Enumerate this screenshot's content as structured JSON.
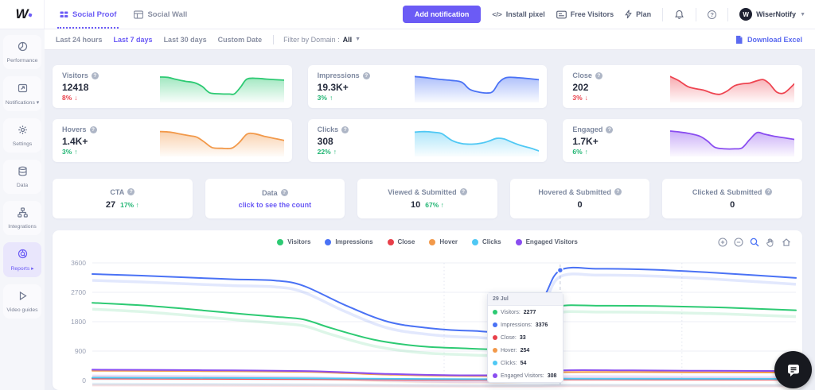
{
  "accent": "#6b5bf5",
  "header": {
    "logo_text": "W",
    "tabs": [
      {
        "label": "Social Proof"
      },
      {
        "label": "Social Wall"
      }
    ],
    "add_notification_label": "Add notification",
    "install_pixel_glyph": "</>",
    "install_pixel_label": "Install pixel",
    "free_visitors_label": "Free Visitors",
    "plan_label": "Plan",
    "account_name": "WiserNotify",
    "account_avatar_letter": "W"
  },
  "sidebar": {
    "items": [
      {
        "label": "Performance"
      },
      {
        "label": "Notifications",
        "caret": "▾"
      },
      {
        "label": "Settings"
      },
      {
        "label": "Data"
      },
      {
        "label": "Integrations"
      },
      {
        "label": "Reports",
        "caret": "▸",
        "active": true
      },
      {
        "label": "Video guides"
      }
    ]
  },
  "filter_bar": {
    "ranges": [
      "Last 24 hours",
      "Last 7 days",
      "Last 30 days",
      "Custom Date"
    ],
    "active_range": "Last 7 days",
    "domain_filter_label": "Filter by Domain :",
    "domain_filter_value": "All",
    "download_label": "Download Excel"
  },
  "stat_cards": [
    {
      "title": "Visitors",
      "value": "12418",
      "change": "8%",
      "arrow": "↓",
      "change_color": "#e8404a",
      "color": "#2dca73",
      "spark": [
        [
          0,
          0.88
        ],
        [
          0.06,
          0.87
        ],
        [
          0.12,
          0.8
        ],
        [
          0.2,
          0.72
        ],
        [
          0.28,
          0.66
        ],
        [
          0.34,
          0.52
        ],
        [
          0.4,
          0.28
        ],
        [
          0.48,
          0.24
        ],
        [
          0.56,
          0.23
        ],
        [
          0.6,
          0.24
        ],
        [
          0.65,
          0.5
        ],
        [
          0.7,
          0.8
        ],
        [
          0.78,
          0.83
        ],
        [
          0.86,
          0.8
        ],
        [
          1,
          0.76
        ]
      ]
    },
    {
      "title": "Impressions",
      "value": "19.3K+",
      "change": "3%",
      "arrow": "↑",
      "change_color": "#21b573",
      "color": "#4a72f5",
      "spark": [
        [
          0,
          0.9
        ],
        [
          0.1,
          0.85
        ],
        [
          0.2,
          0.79
        ],
        [
          0.3,
          0.75
        ],
        [
          0.38,
          0.68
        ],
        [
          0.44,
          0.42
        ],
        [
          0.5,
          0.32
        ],
        [
          0.58,
          0.27
        ],
        [
          0.63,
          0.33
        ],
        [
          0.68,
          0.68
        ],
        [
          0.74,
          0.86
        ],
        [
          0.84,
          0.85
        ],
        [
          1,
          0.78
        ]
      ]
    },
    {
      "title": "Close",
      "value": "202",
      "change": "3%",
      "arrow": "↓",
      "change_color": "#e8404a",
      "color": "#ee4450",
      "spark": [
        [
          0,
          0.9
        ],
        [
          0.07,
          0.74
        ],
        [
          0.14,
          0.52
        ],
        [
          0.2,
          0.44
        ],
        [
          0.27,
          0.38
        ],
        [
          0.34,
          0.26
        ],
        [
          0.4,
          0.22
        ],
        [
          0.46,
          0.35
        ],
        [
          0.52,
          0.55
        ],
        [
          0.58,
          0.62
        ],
        [
          0.64,
          0.65
        ],
        [
          0.7,
          0.74
        ],
        [
          0.75,
          0.78
        ],
        [
          0.8,
          0.62
        ],
        [
          0.86,
          0.3
        ],
        [
          0.92,
          0.28
        ],
        [
          1,
          0.62
        ]
      ]
    },
    {
      "title": "Hovers",
      "value": "1.4K+",
      "change": "3%",
      "arrow": "↑",
      "change_color": "#21b573",
      "color": "#f2994a",
      "spark": [
        [
          0,
          0.86
        ],
        [
          0.08,
          0.84
        ],
        [
          0.16,
          0.77
        ],
        [
          0.24,
          0.7
        ],
        [
          0.3,
          0.64
        ],
        [
          0.36,
          0.45
        ],
        [
          0.42,
          0.25
        ],
        [
          0.5,
          0.22
        ],
        [
          0.58,
          0.23
        ],
        [
          0.64,
          0.45
        ],
        [
          0.7,
          0.76
        ],
        [
          0.76,
          0.78
        ],
        [
          0.84,
          0.68
        ],
        [
          0.92,
          0.6
        ],
        [
          1,
          0.52
        ]
      ]
    },
    {
      "title": "Clicks",
      "value": "308",
      "change": "22%",
      "arrow": "↑",
      "change_color": "#21b573",
      "color": "#4fc8f4",
      "spark": [
        [
          0,
          0.84
        ],
        [
          0.08,
          0.86
        ],
        [
          0.16,
          0.83
        ],
        [
          0.22,
          0.78
        ],
        [
          0.3,
          0.52
        ],
        [
          0.38,
          0.4
        ],
        [
          0.46,
          0.38
        ],
        [
          0.54,
          0.42
        ],
        [
          0.6,
          0.5
        ],
        [
          0.66,
          0.6
        ],
        [
          0.72,
          0.58
        ],
        [
          0.78,
          0.46
        ],
        [
          0.86,
          0.32
        ],
        [
          0.94,
          0.22
        ],
        [
          1,
          0.12
        ]
      ]
    },
    {
      "title": "Engaged",
      "value": "1.7K+",
      "change": "6%",
      "arrow": "↑",
      "change_color": "#21b573",
      "color": "#8a4df0",
      "spark": [
        [
          0,
          0.88
        ],
        [
          0.08,
          0.84
        ],
        [
          0.16,
          0.78
        ],
        [
          0.24,
          0.68
        ],
        [
          0.3,
          0.5
        ],
        [
          0.36,
          0.26
        ],
        [
          0.44,
          0.2
        ],
        [
          0.52,
          0.2
        ],
        [
          0.58,
          0.24
        ],
        [
          0.64,
          0.55
        ],
        [
          0.7,
          0.82
        ],
        [
          0.76,
          0.76
        ],
        [
          0.84,
          0.68
        ],
        [
          0.92,
          0.62
        ],
        [
          1,
          0.56
        ]
      ]
    }
  ],
  "summary_cards": [
    {
      "title": "CTA",
      "value": "27",
      "change": "17%",
      "arrow": "↑",
      "change_color": "#21b573"
    },
    {
      "title": "Data",
      "link_text": "click to see the count"
    },
    {
      "title": "Viewed & Submitted",
      "value": "10",
      "change": "67%",
      "arrow": "↑",
      "change_color": "#21b573"
    },
    {
      "title": "Hovered & Submitted",
      "value": "0"
    },
    {
      "title": "Clicked & Submitted",
      "value": "0"
    }
  ],
  "chart_data": {
    "type": "line",
    "title": "",
    "legend_position": "top-center",
    "grid": true,
    "y_max": 3600,
    "y_ticks": [
      0,
      900,
      1800,
      2700,
      3600
    ],
    "x_unit": "fraction of last-7-days window (no x labels visible)",
    "series": [
      {
        "name": "Visitors",
        "color": "#2dca73",
        "points": [
          [
            0,
            2380
          ],
          [
            0.07,
            2300
          ],
          [
            0.14,
            2180
          ],
          [
            0.2,
            2060
          ],
          [
            0.26,
            1950
          ],
          [
            0.3,
            1870
          ],
          [
            0.34,
            1600
          ],
          [
            0.4,
            1250
          ],
          [
            0.46,
            1060
          ],
          [
            0.52,
            990
          ],
          [
            0.58,
            980
          ],
          [
            0.62,
            1300
          ],
          [
            0.645,
            1950
          ],
          [
            0.665,
            2277
          ],
          [
            0.72,
            2290
          ],
          [
            0.8,
            2280
          ],
          [
            0.9,
            2230
          ],
          [
            1,
            2150
          ]
        ]
      },
      {
        "name": "Impressions",
        "color": "#4a72f5",
        "points": [
          [
            0,
            3260
          ],
          [
            0.07,
            3210
          ],
          [
            0.14,
            3150
          ],
          [
            0.2,
            3100
          ],
          [
            0.26,
            3060
          ],
          [
            0.3,
            2900
          ],
          [
            0.36,
            2300
          ],
          [
            0.42,
            1800
          ],
          [
            0.48,
            1600
          ],
          [
            0.54,
            1520
          ],
          [
            0.6,
            1560
          ],
          [
            0.64,
            2500
          ],
          [
            0.665,
            3376
          ],
          [
            0.72,
            3420
          ],
          [
            0.8,
            3390
          ],
          [
            0.9,
            3280
          ],
          [
            1,
            3140
          ]
        ]
      },
      {
        "name": "Close",
        "color": "#e8404a",
        "points": [
          [
            0,
            58
          ],
          [
            0.15,
            50
          ],
          [
            0.3,
            42
          ],
          [
            0.42,
            30
          ],
          [
            0.55,
            22
          ],
          [
            0.63,
            25
          ],
          [
            0.665,
            33
          ],
          [
            0.8,
            31
          ],
          [
            1,
            29
          ]
        ]
      },
      {
        "name": "Hover",
        "color": "#f2994a",
        "points": [
          [
            0,
            300
          ],
          [
            0.1,
            292
          ],
          [
            0.2,
            282
          ],
          [
            0.3,
            265
          ],
          [
            0.36,
            225
          ],
          [
            0.42,
            180
          ],
          [
            0.5,
            145
          ],
          [
            0.58,
            140
          ],
          [
            0.63,
            185
          ],
          [
            0.665,
            254
          ],
          [
            0.75,
            258
          ],
          [
            0.85,
            250
          ],
          [
            1,
            243
          ]
        ]
      },
      {
        "name": "Clicks",
        "color": "#4fc8f4",
        "points": [
          [
            0,
            85
          ],
          [
            0.15,
            78
          ],
          [
            0.3,
            68
          ],
          [
            0.42,
            52
          ],
          [
            0.55,
            40
          ],
          [
            0.63,
            42
          ],
          [
            0.665,
            54
          ],
          [
            0.8,
            52
          ],
          [
            1,
            48
          ]
        ]
      },
      {
        "name": "Engaged Visitors",
        "color": "#8a4df0",
        "points": [
          [
            0,
            330
          ],
          [
            0.1,
            320
          ],
          [
            0.2,
            308
          ],
          [
            0.3,
            290
          ],
          [
            0.36,
            250
          ],
          [
            0.42,
            200
          ],
          [
            0.5,
            165
          ],
          [
            0.58,
            160
          ],
          [
            0.63,
            210
          ],
          [
            0.665,
            308
          ],
          [
            0.75,
            312
          ],
          [
            0.85,
            300
          ],
          [
            1,
            290
          ]
        ]
      }
    ],
    "hover_tooltip": {
      "date": "29 Jul",
      "x_frac": 0.665,
      "rows": [
        {
          "name": "Visitors",
          "value": "2277",
          "color": "#2dca73"
        },
        {
          "name": "Impressions",
          "value": "3376",
          "color": "#4a72f5"
        },
        {
          "name": "Close",
          "value": "33",
          "color": "#e8404a"
        },
        {
          "name": "Hover",
          "value": "254",
          "color": "#f2994a"
        },
        {
          "name": "Clicks",
          "value": "54",
          "color": "#4fc8f4"
        },
        {
          "name": "Engaged Visitors",
          "value": "308",
          "color": "#8a4df0"
        }
      ]
    }
  }
}
